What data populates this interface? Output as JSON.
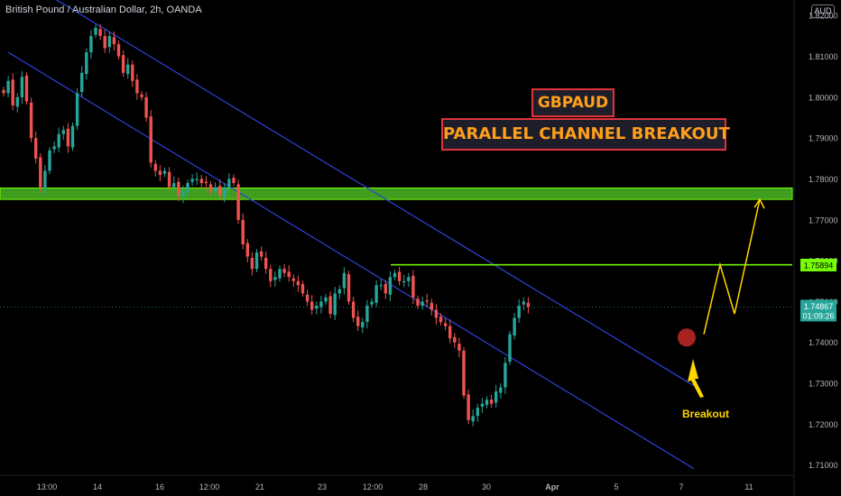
{
  "header": {
    "title": "British Pound / Australian Dollar, 2h, OANDA",
    "currency": "AUD"
  },
  "annotations": {
    "title": "GBPAUD",
    "subtitle": "PARALLEL CHANNEL BREAKOUT",
    "breakout_label": "Breakout"
  },
  "chart_data": {
    "type": "candlestick",
    "symbol": "GBPAUD",
    "timeframe": "2h",
    "y_ticks": [
      "1.82000",
      "1.81000",
      "1.80000",
      "1.79000",
      "1.78000",
      "1.77000",
      "1.76000",
      "1.75000",
      "1.74000",
      "1.73000",
      "1.72000",
      "1.71000"
    ],
    "x_ticks": [
      "13:00",
      "14",
      "16",
      "12:00",
      "21",
      "23",
      "12:00",
      "28",
      "30",
      "Apr",
      "5",
      "7",
      "11"
    ],
    "ylim": [
      1.7075,
      1.8238
    ],
    "price_labels": [
      {
        "text": "1.75894",
        "value": 1.75894,
        "color": "#76ff03"
      },
      {
        "text": "1.74867",
        "value": 1.74867,
        "color": "#26a69a",
        "countdown": "01:09:26"
      }
    ],
    "support_zone": {
      "low": 1.775,
      "high": 1.7778,
      "color": "#3f9d1f"
    },
    "resistance_level": 1.759,
    "series": [
      {
        "name": "",
        "values": [
          1.801,
          1.804,
          1.798,
          1.8,
          1.805,
          1.799,
          1.79,
          1.785,
          1.778,
          1.782,
          1.787,
          1.788,
          1.791,
          1.792,
          1.788,
          1.793,
          1.801,
          1.806,
          1.811,
          1.815,
          1.817,
          1.815,
          1.812,
          1.815,
          1.813,
          1.81,
          1.806,
          1.808,
          1.804,
          1.801,
          1.8,
          1.795,
          1.784,
          1.782,
          1.781,
          1.782,
          1.778,
          1.779,
          1.776,
          1.777,
          1.779,
          1.78,
          1.78,
          1.779,
          1.779,
          1.777,
          1.778,
          1.776,
          1.778,
          1.78,
          1.779,
          1.77,
          1.764,
          1.761,
          1.758,
          1.762,
          1.761,
          1.758,
          1.755,
          1.756,
          1.758,
          1.757,
          1.756,
          1.755,
          1.754,
          1.752,
          1.75,
          1.748,
          1.749,
          1.75,
          1.751,
          1.747,
          1.752,
          1.753,
          1.757,
          1.75,
          1.746,
          1.744,
          1.745,
          1.749,
          1.75,
          1.754,
          1.754,
          1.752,
          1.756,
          1.757,
          1.755,
          1.755,
          1.756,
          1.751,
          1.749,
          1.75,
          1.75,
          1.748,
          1.746,
          1.745,
          1.744,
          1.741,
          1.74,
          1.738,
          1.727,
          1.721,
          1.722,
          1.724,
          1.725,
          1.726,
          1.725,
          1.728,
          1.729,
          1.735,
          1.742,
          1.746,
          1.749,
          1.75,
          1.7487
        ]
      }
    ],
    "channel": {
      "upper": {
        "from": [
          1,
          1.831
        ],
        "to": [
          150,
          1.7294
        ]
      },
      "lower": {
        "from": [
          1,
          1.811
        ],
        "to": [
          150,
          1.7091
        ]
      }
    },
    "projection": [
      1.742,
      1.759,
      1.747,
      1.775
    ],
    "breakout_marker": 1.7412
  }
}
